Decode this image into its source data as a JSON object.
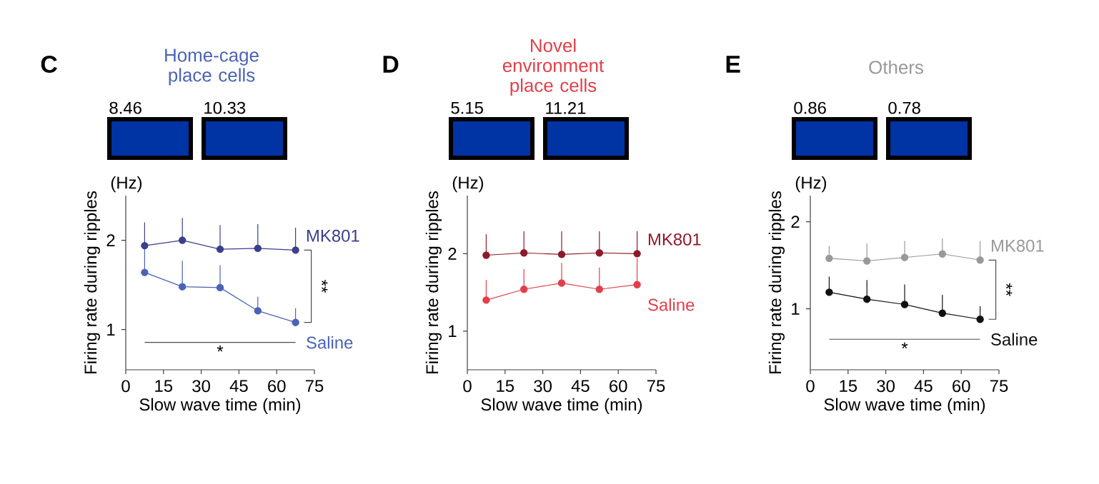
{
  "chart_data": [
    {
      "type": "line",
      "title": "Home-cage place cells",
      "xlabel": "Slow wave time (min)",
      "ylabel": "Firing rate during ripples",
      "xlim": [
        0,
        75
      ],
      "xticks": [
        0,
        15,
        30,
        45,
        60,
        75
      ],
      "ylim": [
        0.55,
        2.5
      ],
      "yticks": [
        1,
        2
      ],
      "marker": "circle",
      "annotations": [
        "C",
        "(Hz)",
        "8.46",
        "10.33",
        "**",
        "*"
      ],
      "x": [
        7.5,
        22.5,
        37.5,
        52.5,
        67.5
      ],
      "series": [
        {
          "name": "MK801",
          "color": "#3a3f8a",
          "values": [
            1.94,
            2.0,
            1.9,
            1.91,
            1.89
          ],
          "errors": [
            [
              1.94,
              2.2
            ],
            [
              2.0,
              2.25
            ],
            [
              1.9,
              2.17
            ],
            [
              1.91,
              2.18
            ],
            [
              1.89,
              2.14
            ]
          ]
        },
        {
          "name": "Saline",
          "color": "#4a63b5",
          "values": [
            1.64,
            1.48,
            1.47,
            1.21,
            1.08
          ],
          "errors": [
            [
              1.64,
              1.94
            ],
            [
              1.48,
              1.77
            ],
            [
              1.47,
              1.72
            ],
            [
              1.21,
              1.37
            ],
            [
              1.08,
              1.24
            ]
          ]
        }
      ]
    },
    {
      "type": "line",
      "title": "Novel environment place cells",
      "xlabel": "Slow wave time (min)",
      "ylabel": "Firing rate during ripples",
      "xlim": [
        0,
        75
      ],
      "xticks": [
        0,
        15,
        30,
        45,
        60,
        75
      ],
      "ylim": [
        0.5,
        2.75
      ],
      "yticks": [
        1,
        2
      ],
      "marker": "circle",
      "annotations": [
        "D",
        "(Hz)",
        "5.15",
        "11.21"
      ],
      "x": [
        7.5,
        22.5,
        37.5,
        52.5,
        67.5
      ],
      "series": [
        {
          "name": "MK801",
          "color": "#8b1a2a",
          "values": [
            1.98,
            2.01,
            1.99,
            2.01,
            2.0
          ],
          "errors": [
            [
              1.98,
              2.25
            ],
            [
              2.01,
              2.29
            ],
            [
              1.99,
              2.29
            ],
            [
              2.01,
              2.29
            ],
            [
              2.0,
              2.29
            ]
          ]
        },
        {
          "name": "Saline",
          "color": "#e0404a",
          "values": [
            1.4,
            1.54,
            1.62,
            1.54,
            1.6
          ],
          "errors": [
            [
              1.4,
              1.66
            ],
            [
              1.54,
              1.8
            ],
            [
              1.62,
              1.88
            ],
            [
              1.54,
              1.82
            ],
            [
              1.6,
              1.94
            ]
          ]
        }
      ]
    },
    {
      "type": "line",
      "title": "Others",
      "xlabel": "Slow wave time (min)",
      "ylabel": "Firing rate during ripples",
      "xlim": [
        0,
        75
      ],
      "xticks": [
        0,
        15,
        30,
        45,
        60,
        75
      ],
      "ylim": [
        0.3,
        2.3
      ],
      "yticks": [
        1,
        2
      ],
      "marker": "circle",
      "annotations": [
        "E",
        "(Hz)",
        "0.86",
        "0.78",
        "**",
        "*"
      ],
      "x": [
        7.5,
        22.5,
        37.5,
        52.5,
        67.5
      ],
      "series": [
        {
          "name": "MK801",
          "color": "#999999",
          "values": [
            1.58,
            1.55,
            1.59,
            1.63,
            1.56
          ],
          "errors": [
            [
              1.58,
              1.72
            ],
            [
              1.55,
              1.75
            ],
            [
              1.59,
              1.78
            ],
            [
              1.63,
              1.81
            ],
            [
              1.56,
              1.78
            ]
          ]
        },
        {
          "name": "Saline",
          "color": "#111111",
          "values": [
            1.19,
            1.11,
            1.05,
            0.95,
            0.88
          ],
          "errors": [
            [
              1.19,
              1.37
            ],
            [
              1.11,
              1.33
            ],
            [
              1.05,
              1.28
            ],
            [
              0.95,
              1.16
            ],
            [
              0.88,
              1.03
            ]
          ]
        }
      ]
    }
  ]
}
